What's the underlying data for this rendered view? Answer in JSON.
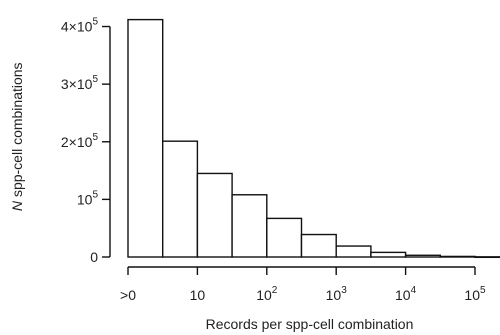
{
  "chart_data": {
    "type": "bar",
    "xlabel": "Records per spp-cell combination",
    "ylabel_prefix": "N",
    "ylabel_rest": " spp-cell combinations",
    "ylim": [
      0,
      420000
    ],
    "y_ticks": [
      {
        "value": 0,
        "base": "0",
        "exp": ""
      },
      {
        "value": 100000,
        "base": "10",
        "exp": "5"
      },
      {
        "value": 200000,
        "base": "2×10",
        "exp": "5"
      },
      {
        "value": 300000,
        "base": "3×10",
        "exp": "5"
      },
      {
        "value": 400000,
        "base": "4×10",
        "exp": "5"
      }
    ],
    "x_ticks": [
      {
        "pos": 0,
        "base": ">0",
        "exp": ""
      },
      {
        "pos": 1,
        "base": "10",
        "exp": ""
      },
      {
        "pos": 2,
        "base": "10",
        "exp": "2"
      },
      {
        "pos": 3,
        "base": "10",
        "exp": "3"
      },
      {
        "pos": 4,
        "base": "10",
        "exp": "4"
      },
      {
        "pos": 5,
        "base": "10",
        "exp": "5"
      }
    ],
    "bins": [
      {
        "from": 0.0,
        "to": 0.5,
        "value": 412000
      },
      {
        "from": 0.5,
        "to": 1.0,
        "value": 201000
      },
      {
        "from": 1.0,
        "to": 1.5,
        "value": 145000
      },
      {
        "from": 1.5,
        "to": 2.0,
        "value": 108000
      },
      {
        "from": 2.0,
        "to": 2.5,
        "value": 67000
      },
      {
        "from": 2.5,
        "to": 3.0,
        "value": 39000
      },
      {
        "from": 3.0,
        "to": 3.5,
        "value": 19000
      },
      {
        "from": 3.5,
        "to": 4.0,
        "value": 8000
      },
      {
        "from": 4.0,
        "to": 4.5,
        "value": 3000
      },
      {
        "from": 4.5,
        "to": 5.0,
        "value": 1000
      },
      {
        "from": 5.0,
        "to": 5.5,
        "value": 300
      }
    ],
    "x_range": [
      0,
      5.5
    ]
  }
}
